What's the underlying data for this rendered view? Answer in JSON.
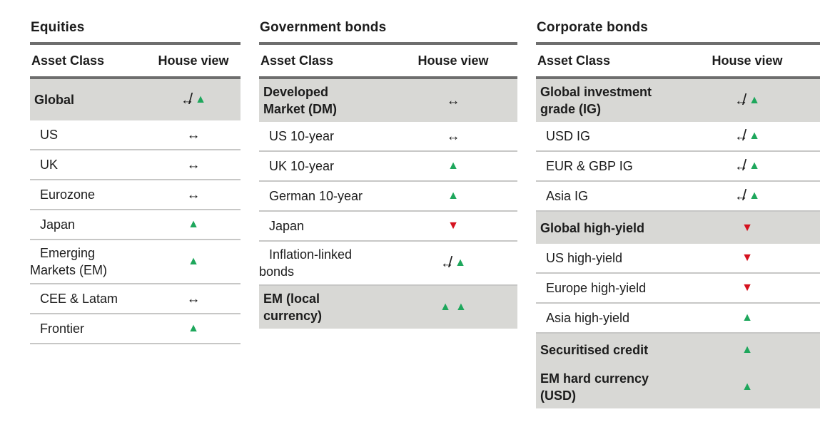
{
  "colors": {
    "up": "#1ea75c",
    "down": "#d5121f",
    "highlight_row_bg": "#d8d8d5",
    "rule_dark": "#6e6e6e",
    "rule_light": "#c7c7c6",
    "text": "#1c1c1c"
  },
  "icons": {
    "up": "▲",
    "down": "▼",
    "neutral": "↔",
    "slash": "/"
  },
  "tables": [
    {
      "title": "Equities",
      "columns": [
        "Asset Class",
        "House view"
      ],
      "rows": [
        {
          "label": "Global",
          "highlight": true,
          "view": "neutral-up"
        },
        {
          "label": "US",
          "view": "neutral"
        },
        {
          "label": "UK",
          "view": "neutral"
        },
        {
          "label": "Eurozone",
          "view": "neutral"
        },
        {
          "label": "Japan",
          "view": "up"
        },
        {
          "label": "Emerging\nMarkets (EM)",
          "view": "up"
        },
        {
          "label": "CEE & Latam",
          "view": "neutral"
        },
        {
          "label": "Frontier",
          "view": "up"
        }
      ]
    },
    {
      "title": "Government bonds",
      "columns": [
        "Asset Class",
        "House view"
      ],
      "rows": [
        {
          "label": "Developed\nMarket (DM)",
          "highlight": true,
          "view": "neutral"
        },
        {
          "label": "US 10-year",
          "view": "neutral"
        },
        {
          "label": "UK 10-year",
          "view": "up"
        },
        {
          "label": "German 10-year",
          "view": "up"
        },
        {
          "label": "Japan",
          "view": "down"
        },
        {
          "label": "Inflation-linked\nbonds",
          "view": "neutral-up"
        },
        {
          "label": "EM (local\ncurrency)",
          "highlight": true,
          "view": "double-up"
        }
      ]
    },
    {
      "title": "Corporate bonds",
      "columns": [
        "Asset Class",
        "House view"
      ],
      "rows": [
        {
          "label": "Global investment\ngrade (IG)",
          "highlight": true,
          "view": "neutral-up"
        },
        {
          "label": "USD IG",
          "view": "neutral-up"
        },
        {
          "label": "EUR & GBP IG",
          "view": "neutral-up"
        },
        {
          "label": "Asia IG",
          "view": "neutral-up"
        },
        {
          "label": "Global high-yield",
          "highlight": true,
          "view": "down"
        },
        {
          "label": "US high-yield",
          "view": "down"
        },
        {
          "label": "Europe high-yield",
          "view": "down"
        },
        {
          "label": "Asia high-yield",
          "view": "up"
        },
        {
          "label": "Securitised credit",
          "highlight": true,
          "view": "up"
        },
        {
          "label": "EM hard currency\n(USD)",
          "highlight": true,
          "view": "up"
        }
      ]
    }
  ]
}
